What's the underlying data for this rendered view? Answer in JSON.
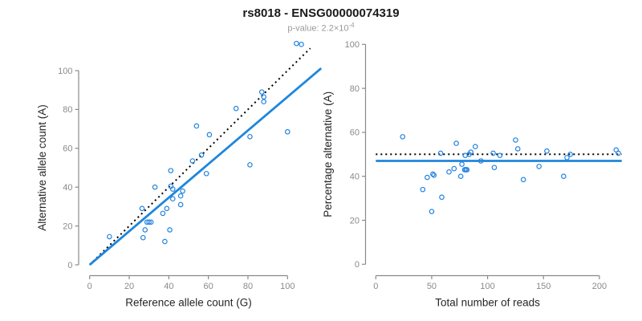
{
  "title": "rs8018 - ENSG00000074319",
  "subtitle": {
    "text": "p-value: 2.2×10",
    "exponent": "-4"
  },
  "colors": {
    "points": "#2484e0",
    "regression_line": "#1e86dc",
    "dashed_line": "#000000",
    "axis": "#8a8a8a",
    "tick_label": "#8a8a8a",
    "axis_title": "#262626"
  },
  "chart_data": [
    {
      "type": "scatter",
      "panel": "left",
      "xlabel": "Reference allele count (G)",
      "ylabel": "Alternative allele count (A)",
      "xticks": [
        0,
        20,
        40,
        60,
        80,
        100
      ],
      "yticks": [
        0,
        20,
        40,
        60,
        80,
        100
      ],
      "xlim": [
        0,
        110
      ],
      "ylim": [
        0,
        115
      ],
      "grid": false,
      "points": [
        [
          10,
          14.5
        ],
        [
          26.5,
          29
        ],
        [
          27,
          14
        ],
        [
          28,
          18
        ],
        [
          29,
          22
        ],
        [
          30,
          22
        ],
        [
          31,
          22
        ],
        [
          33,
          40
        ],
        [
          37,
          26.5
        ],
        [
          38,
          12
        ],
        [
          39,
          29
        ],
        [
          40.5,
          18
        ],
        [
          41,
          40.5
        ],
        [
          41,
          48.5
        ],
        [
          42,
          34
        ],
        [
          42,
          39
        ],
        [
          46,
          31
        ],
        [
          46,
          35.5
        ],
        [
          47,
          38
        ],
        [
          52,
          53.5
        ],
        [
          54,
          71.5
        ],
        [
          56.5,
          56.5
        ],
        [
          59,
          47
        ],
        [
          60.5,
          67
        ],
        [
          74,
          80.5
        ],
        [
          81,
          51.5
        ],
        [
          81,
          66
        ],
        [
          87,
          89
        ],
        [
          88,
          84
        ],
        [
          88,
          86.5
        ],
        [
          100,
          68.5
        ],
        [
          104.5,
          114
        ],
        [
          107,
          113.5
        ]
      ],
      "lines": [
        {
          "name": "identity-line",
          "style": "dotted",
          "color": "#000000",
          "slope": 1,
          "intercept": 0,
          "x_range": [
            0,
            111.5
          ]
        },
        {
          "name": "regression-line",
          "style": "solid",
          "color": "#1e86dc",
          "slope": 0.865,
          "intercept": 0,
          "x_range": [
            0,
            117
          ]
        }
      ]
    },
    {
      "type": "scatter",
      "panel": "right",
      "xlabel": "Total number of reads",
      "ylabel": "Percentage alternative (A)",
      "xticks": [
        0,
        50,
        100,
        150,
        200
      ],
      "yticks": [
        0,
        20,
        40,
        60,
        80,
        100
      ],
      "xlim": [
        0,
        220
      ],
      "ylim": [
        0,
        100
      ],
      "grid": false,
      "points": [
        [
          24,
          58
        ],
        [
          42,
          34
        ],
        [
          46,
          39.5
        ],
        [
          50,
          24
        ],
        [
          51,
          41
        ],
        [
          52,
          40.5
        ],
        [
          58,
          50.5
        ],
        [
          59,
          30.5
        ],
        [
          65.5,
          42
        ],
        [
          70,
          43.5
        ],
        [
          72,
          55
        ],
        [
          76,
          40
        ],
        [
          77,
          45.5
        ],
        [
          79.5,
          43
        ],
        [
          80.5,
          43
        ],
        [
          81.5,
          43
        ],
        [
          80,
          49.5
        ],
        [
          83.5,
          50
        ],
        [
          85,
          51
        ],
        [
          89,
          53.5
        ],
        [
          94,
          47
        ],
        [
          105,
          50.5
        ],
        [
          106,
          44
        ],
        [
          111,
          49.5
        ],
        [
          125,
          56.5
        ],
        [
          127,
          52.5
        ],
        [
          132,
          38.5
        ],
        [
          146,
          44.5
        ],
        [
          153,
          51.5
        ],
        [
          168,
          40
        ],
        [
          171,
          48.5
        ],
        [
          174,
          50
        ],
        [
          215,
          52
        ],
        [
          217,
          50.5
        ]
      ],
      "lines": [
        {
          "name": "expected-50pct-line",
          "style": "dotted",
          "color": "#000000",
          "slope": 0,
          "intercept": 50,
          "x_range": [
            0,
            220
          ]
        },
        {
          "name": "observed-mean-line",
          "style": "solid",
          "color": "#1e86dc",
          "slope": 0,
          "intercept": 47,
          "x_range": [
            0,
            220
          ]
        }
      ]
    }
  ]
}
